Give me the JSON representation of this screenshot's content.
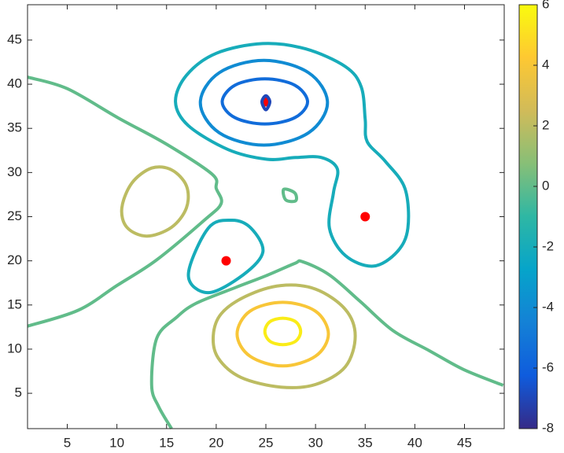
{
  "chart_data": {
    "type": "contour",
    "xlim": [
      1,
      49
    ],
    "ylim": [
      1,
      49
    ],
    "xticks": [
      5,
      10,
      15,
      20,
      25,
      30,
      35,
      40,
      45
    ],
    "yticks": [
      5,
      10,
      15,
      20,
      25,
      30,
      35,
      40,
      45
    ],
    "clim": [
      -8,
      6
    ],
    "cticks": [
      -8,
      -6,
      -4,
      -2,
      0,
      2,
      4,
      6
    ],
    "colormap": [
      "#352a87",
      "#0f5cdd",
      "#1481d6",
      "#06a4ca",
      "#2eb7a4",
      "#87bf77",
      "#d1bb59",
      "#fec832",
      "#f9fb0e"
    ],
    "contours": [
      {
        "level": -7,
        "lines": [
          {
            "x": [
              24.6,
              25,
              25.4,
              25,
              24.6
            ],
            "y": [
              38,
              38.7,
              38,
              37.1,
              38
            ]
          }
        ]
      },
      {
        "level": -5.5,
        "lines": [
          {
            "x": [
              29.2,
              27.9,
              24.9,
              21.9,
              20.6,
              21.9,
              24.9,
              27.9,
              29.2
            ],
            "y": [
              38,
              39.9,
              40.6,
              39.9,
              38,
              36.2,
              35.5,
              36.2,
              38
            ]
          }
        ]
      },
      {
        "level": -4,
        "lines": [
          {
            "x": [
              31.2,
              29.3,
              24.8,
              20.3,
              18.4,
              20.3,
              24.8,
              29.3,
              31.2
            ],
            "y": [
              37.9,
              41.3,
              42.7,
              41.3,
              37.9,
              34.5,
              33.1,
              34.5,
              37.9
            ]
          }
        ]
      },
      {
        "level": -2,
        "lines": [
          {
            "x": [
              15.9,
              17,
              20,
              24.7,
              29,
              33,
              34.6,
              35,
              35.2,
              37,
              39,
              39.3,
              38.2,
              35.8,
              33,
              31.4,
              31.8,
              32.2,
              30.6,
              28,
              25.1,
              21.2,
              17.2,
              15.9
            ],
            "y": [
              38,
              41,
              43.5,
              44.6,
              44,
              42,
              39.7,
              36,
              33.5,
              31.3,
              28.2,
              23.7,
              21,
              19.4,
              20.6,
              23.7,
              27.7,
              30.4,
              31.7,
              31.7,
              31.5,
              32.6,
              35.3,
              38
            ]
          },
          {
            "x": [
              17.2,
              19.2,
              21.6,
              23.5,
              24.7,
              22.7,
              19.2,
              17.2
            ],
            "y": [
              18.4,
              23.7,
              24.6,
              23.7,
              21,
              18.4,
              16.4,
              18.4
            ]
          }
        ]
      },
      {
        "level": 0,
        "lines": [
          {
            "x": [
              1,
              5,
              10.1,
              15,
              19.6,
              20,
              20.5,
              18.8,
              14,
              10,
              6.1,
              1
            ],
            "y": [
              40.8,
              39.5,
              36.2,
              33.2,
              29.8,
              28.2,
              26.5,
              24.6,
              20.1,
              17.2,
              14.4,
              12.6
            ]
          },
          {
            "x": [
              15.5,
              14.2,
              13.5,
              14,
              16,
              18,
              22,
              25,
              27.9,
              28.7,
              31.4,
              34.5,
              37.8,
              41.5,
              44.9,
              48.9
            ],
            "y": [
              1,
              3.5,
              5.9,
              11.2,
              13.6,
              15.2,
              17,
              18.3,
              19.7,
              19.9,
              18.4,
              15.4,
              12.1,
              9.8,
              7.7,
              5.9
            ]
          },
          {
            "x": [
              26.8,
              27.9,
              28,
              27,
              26.8
            ],
            "y": [
              28.1,
              27.7,
              26.8,
              26.9,
              28.1
            ]
          }
        ]
      },
      {
        "level": 2,
        "lines": [
          {
            "x": [
              10.5,
              11.5,
              13.5,
              15.5,
              17,
              17,
              15.5,
              13,
              11,
              10.5
            ],
            "y": [
              26,
              28.8,
              30.5,
              30.3,
              28.5,
              26,
              23.8,
              22.8,
              23.8,
              26
            ]
          },
          {
            "x": [
              19.7,
              20.5,
              23,
              26.5,
              30,
              33,
              34,
              33,
              30,
              26.5,
              22.5,
              20.2,
              19.7
            ],
            "y": [
              11.5,
              14,
              16,
              17.2,
              16.8,
              14.5,
              11.5,
              8,
              6,
              5.7,
              6.8,
              9,
              11.5
            ]
          }
        ]
      },
      {
        "level": 4,
        "lines": [
          {
            "x": [
              31.3,
              30,
              26.7,
              23.4,
              22.1,
              23.4,
              26.7,
              30,
              31.3
            ],
            "y": [
              11.7,
              14.3,
              15.3,
              14.3,
              11.7,
              9.2,
              8.1,
              9.2,
              11.7
            ]
          }
        ]
      },
      {
        "level": 5.5,
        "lines": [
          {
            "x": [
              28.5,
              28,
              26.7,
              25.4,
              24.9,
              25.4,
              26.7,
              28,
              28.5
            ],
            "y": [
              12,
              13.1,
              13.5,
              13.1,
              12,
              10.9,
              10.5,
              10.9,
              12
            ]
          }
        ]
      }
    ],
    "points": {
      "color": "#ff0000",
      "x": [
        21,
        25,
        35
      ],
      "y": [
        20,
        38,
        25
      ]
    }
  }
}
